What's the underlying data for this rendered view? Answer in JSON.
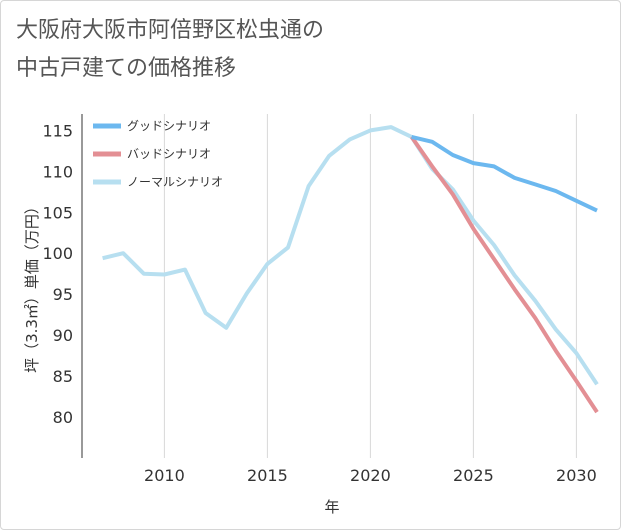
{
  "page": {
    "title": "大阪府大阪市阿倍野区松虫通の\n中古戸建ての価格推移"
  },
  "chart_data": {
    "type": "line",
    "xlabel": "年",
    "ylabel": "坪（3.3㎡）単価（万円）",
    "xlim": [
      2006,
      2031
    ],
    "ylim": [
      75,
      117
    ],
    "xticks": [
      2010,
      2015,
      2020,
      2025,
      2030
    ],
    "yticks": [
      80,
      85,
      90,
      95,
      100,
      105,
      110,
      115
    ],
    "grid": "vertical",
    "legend_position": "top-left",
    "series": [
      {
        "name": "グッドシナリオ",
        "color": "#6cb8ef",
        "x": [
          2022,
          2023,
          2024,
          2025,
          2026,
          2027,
          2028,
          2029,
          2030,
          2031
        ],
        "y": [
          114.2,
          113.6,
          112.0,
          111.0,
          110.6,
          109.2,
          108.4,
          107.6,
          106.4,
          105.2
        ]
      },
      {
        "name": "バッドシナリオ",
        "color": "#e38f94",
        "x": [
          2022,
          2023,
          2024,
          2025,
          2026,
          2027,
          2028,
          2029,
          2030,
          2031
        ],
        "y": [
          114.2,
          110.6,
          107.2,
          103.0,
          99.3,
          95.6,
          92.1,
          88.1,
          84.4,
          80.6
        ]
      },
      {
        "name": "ノーマルシナリオ",
        "color": "#b7dff0",
        "x": [
          2007,
          2008,
          2009,
          2010,
          2011,
          2012,
          2013,
          2014,
          2015,
          2016,
          2017,
          2018,
          2019,
          2020,
          2021,
          2022,
          2023,
          2024,
          2025,
          2026,
          2027,
          2028,
          2029,
          2030,
          2031
        ],
        "y": [
          99.4,
          100.0,
          97.5,
          97.4,
          98.0,
          92.7,
          90.9,
          95.1,
          98.7,
          100.7,
          108.2,
          111.9,
          113.9,
          115.0,
          115.4,
          114.2,
          110.3,
          107.8,
          104.0,
          101.0,
          97.3,
          94.2,
          90.7,
          87.8,
          84.0
        ]
      }
    ]
  }
}
